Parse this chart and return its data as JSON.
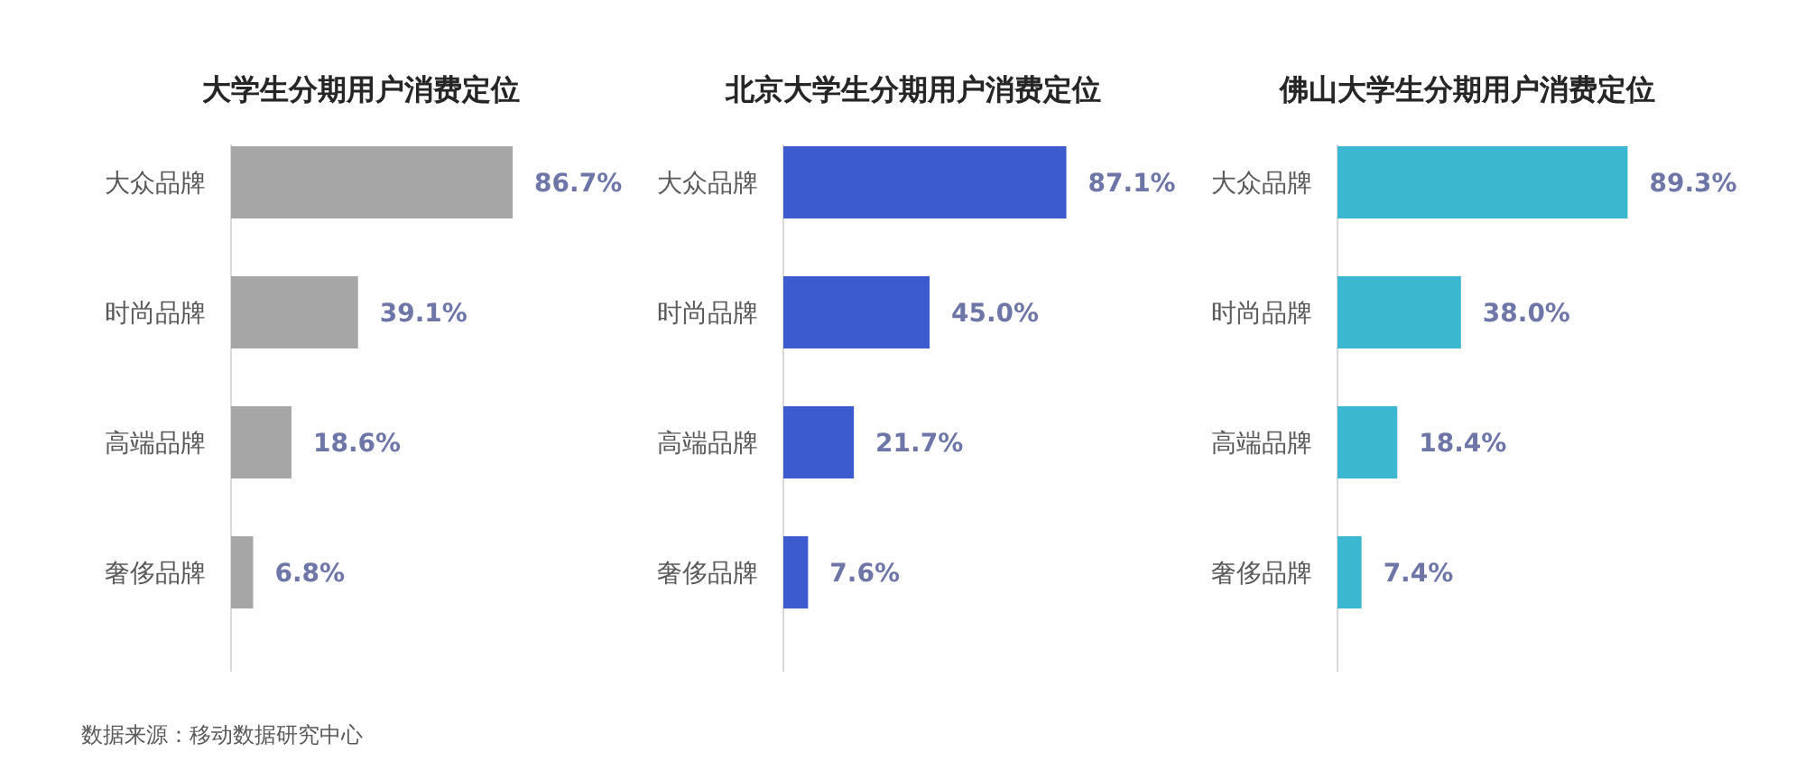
{
  "chart_data": [
    {
      "type": "bar",
      "orientation": "horizontal",
      "title": "大学生分期用户消费定位",
      "categories": [
        "大众品牌",
        "时尚品牌",
        "高端品牌",
        "奢侈品牌"
      ],
      "values": [
        86.7,
        39.1,
        18.6,
        6.8
      ],
      "value_labels": [
        "86.7%",
        "39.1%",
        "18.6%",
        "6.8%"
      ],
      "color": "#a6a6a6",
      "annotations": [
        "数据来源：移动数据研究中心"
      ]
    },
    {
      "type": "bar",
      "orientation": "horizontal",
      "title": "北京大学生分期用户消费定位",
      "categories": [
        "大众品牌",
        "时尚品牌",
        "高端品牌",
        "奢侈品牌"
      ],
      "values": [
        87.1,
        45.0,
        21.7,
        7.6
      ],
      "value_labels": [
        "87.1%",
        "45.0%",
        "21.7%",
        "7.6%"
      ],
      "color": "#3c5bcf"
    },
    {
      "type": "bar",
      "orientation": "horizontal",
      "title": "佛山大学生分期用户消费定位",
      "categories": [
        "大众品牌",
        "时尚品牌",
        "高端品牌",
        "奢侈品牌"
      ],
      "values": [
        89.3,
        38.0,
        18.4,
        7.4
      ],
      "value_labels": [
        "89.3%",
        "38.0%",
        "18.4%",
        "7.4%"
      ],
      "color": "#3bb8d0"
    }
  ]
}
